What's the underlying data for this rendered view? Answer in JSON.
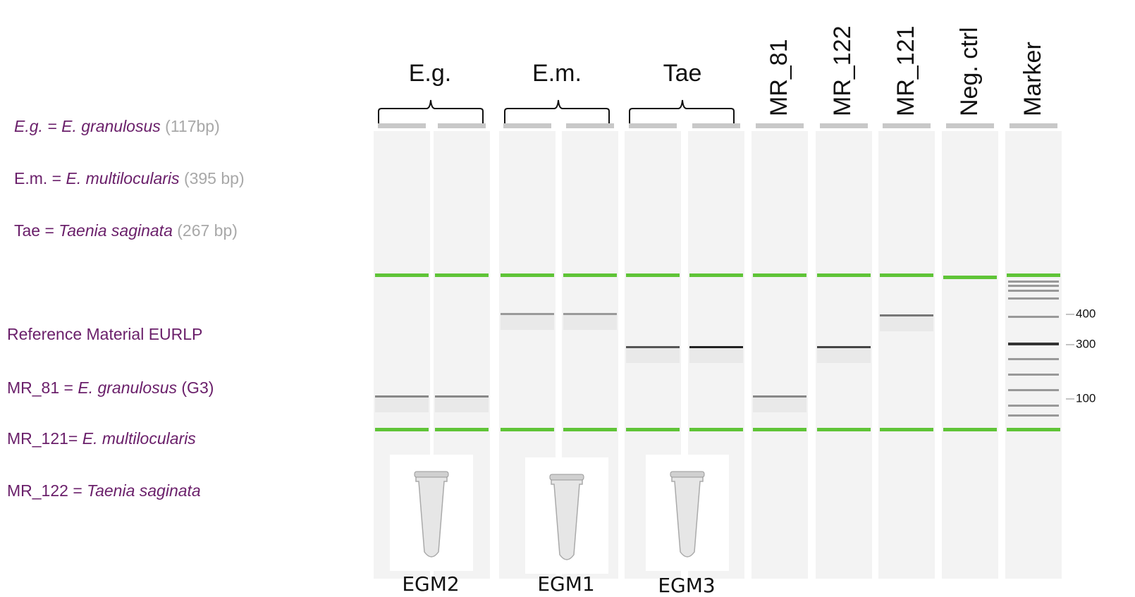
{
  "legend": {
    "items": [
      {
        "prefix": "E.g. =",
        "species": "E. granulosus",
        "suffix": "(117bp)"
      },
      {
        "prefix": "E.m. =",
        "species": "E. multilocularis",
        "suffix": "(395 bp)"
      },
      {
        "prefix": "Tae =",
        "species": "Taenia saginata",
        "suffix": "(267 bp)"
      }
    ],
    "reference": {
      "heading": "Reference Material EURLP",
      "items": [
        {
          "prefix": "MR_81 =",
          "species": "E. granulosus",
          "suffix": "(G3)"
        },
        {
          "prefix": "MR_121=",
          "species": "E. multilocularis"
        },
        {
          "prefix": "MR_122 =",
          "species": "Taenia saginata"
        }
      ]
    }
  },
  "groups": [
    "E.g.",
    "E.m.",
    "Tae"
  ],
  "lanes": [
    "MR_81",
    "MR_122",
    "MR_121",
    "Neg. ctrl",
    "Marker"
  ],
  "marker_labels": [
    "400",
    "300",
    "100"
  ],
  "tubes": [
    "EGM2",
    "EGM1",
    "EGM3"
  ]
}
